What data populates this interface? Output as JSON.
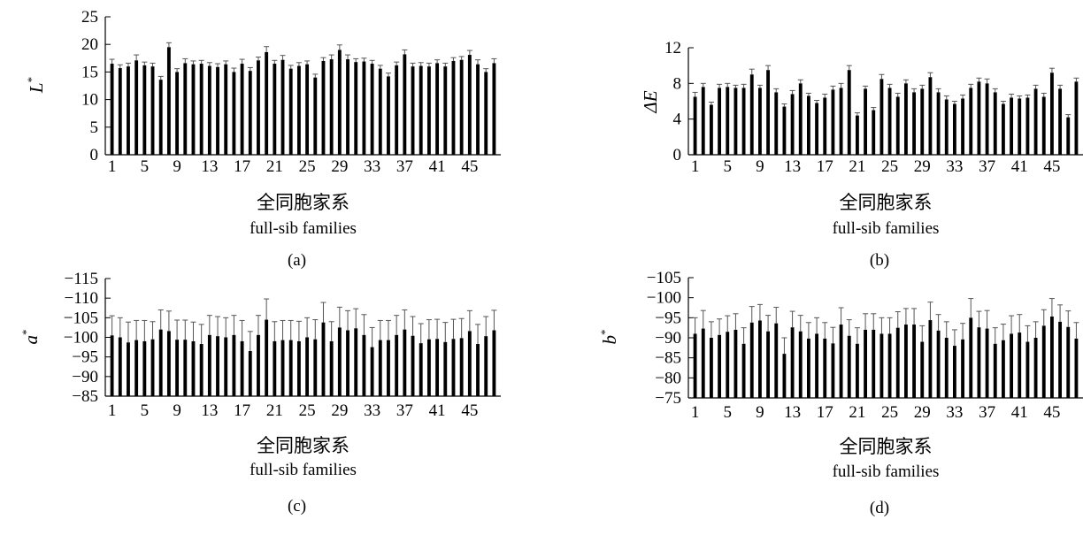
{
  "chart_data": [
    {
      "type": "bar",
      "panel_label": "(a)",
      "ylabel": "L",
      "ylabel_sup": "*",
      "xlabel_cn": "全同胞家系",
      "xlabel_en": "full-sib families",
      "ylim": [
        0,
        25
      ],
      "yticks": [
        "0",
        "5",
        "10",
        "15",
        "20",
        "25"
      ],
      "xticks": [
        "1",
        "5",
        "9",
        "13",
        "17",
        "21",
        "25",
        "29",
        "33",
        "37",
        "41",
        "45"
      ],
      "categories": [
        1,
        2,
        3,
        4,
        5,
        6,
        7,
        8,
        9,
        10,
        11,
        12,
        13,
        14,
        15,
        16,
        17,
        18,
        19,
        20,
        21,
        22,
        23,
        24,
        25,
        26,
        27,
        28,
        29,
        30,
        31,
        32,
        33,
        34,
        35,
        36,
        37,
        38,
        39,
        40,
        41,
        42,
        43,
        44,
        45,
        46,
        47,
        48
      ],
      "values": [
        16.5,
        15.7,
        16.0,
        17.1,
        16.2,
        16.0,
        13.6,
        19.5,
        15.0,
        16.6,
        16.4,
        16.5,
        16.1,
        15.9,
        16.4,
        15.0,
        16.5,
        15.2,
        17.1,
        18.6,
        16.5,
        17.2,
        15.6,
        16.1,
        16.4,
        14.0,
        17.0,
        17.3,
        19.0,
        17.3,
        16.8,
        16.9,
        16.5,
        15.6,
        14.2,
        16.2,
        18.2,
        16.0,
        16.1,
        16.0,
        16.6,
        16.0,
        17.0,
        17.2,
        18.1,
        16.4,
        15.0,
        16.6
      ],
      "errors": [
        0.8,
        0.6,
        0.6,
        1.0,
        0.6,
        0.6,
        0.6,
        0.8,
        0.6,
        0.8,
        0.6,
        0.6,
        0.6,
        0.6,
        0.6,
        0.7,
        0.8,
        0.6,
        0.6,
        1.0,
        0.6,
        0.8,
        0.6,
        0.6,
        0.6,
        0.6,
        0.6,
        0.8,
        0.9,
        0.8,
        0.6,
        0.6,
        0.6,
        0.6,
        0.6,
        0.6,
        0.8,
        0.6,
        0.6,
        0.6,
        0.6,
        0.6,
        0.6,
        0.6,
        0.8,
        0.8,
        0.6,
        0.8
      ]
    },
    {
      "type": "bar",
      "panel_label": "(b)",
      "ylabel": "ΔE",
      "ylabel_sup": "",
      "xlabel_cn": "全同胞家系",
      "xlabel_en": "full-sib families",
      "ylim": [
        0,
        12
      ],
      "yticks": [
        "0",
        "4",
        "8",
        "12"
      ],
      "xticks": [
        "1",
        "5",
        "9",
        "13",
        "17",
        "21",
        "25",
        "29",
        "33",
        "37",
        "41",
        "45"
      ],
      "categories": [
        1,
        2,
        3,
        4,
        5,
        6,
        7,
        8,
        9,
        10,
        11,
        12,
        13,
        14,
        15,
        16,
        17,
        18,
        19,
        20,
        21,
        22,
        23,
        24,
        25,
        26,
        27,
        28,
        29,
        30,
        31,
        32,
        33,
        34,
        35,
        36,
        37,
        38,
        39,
        40,
        41,
        42,
        43,
        44,
        45,
        46,
        47,
        48
      ],
      "values": [
        6.5,
        7.6,
        5.6,
        7.5,
        7.6,
        7.5,
        7.5,
        9.0,
        7.5,
        9.5,
        7.0,
        5.4,
        6.8,
        8.0,
        6.6,
        5.8,
        6.4,
        7.3,
        7.5,
        9.5,
        4.4,
        7.4,
        5.0,
        8.5,
        7.5,
        6.5,
        8.0,
        7.0,
        7.4,
        8.7,
        7.0,
        6.2,
        5.7,
        6.3,
        7.5,
        8.2,
        8.0,
        7.0,
        5.7,
        6.4,
        6.3,
        6.4,
        7.4,
        6.5,
        9.2,
        7.4,
        4.2,
        8.2
      ],
      "errors": [
        0.5,
        0.4,
        0.3,
        0.4,
        0.4,
        0.3,
        0.4,
        0.6,
        0.3,
        0.5,
        0.4,
        0.3,
        0.4,
        0.4,
        0.3,
        0.3,
        0.4,
        0.4,
        0.5,
        0.5,
        0.3,
        0.3,
        0.3,
        0.5,
        0.4,
        0.4,
        0.4,
        0.4,
        0.4,
        0.5,
        0.4,
        0.4,
        0.3,
        0.4,
        0.4,
        0.4,
        0.5,
        0.4,
        0.3,
        0.4,
        0.3,
        0.3,
        0.4,
        0.4,
        0.5,
        0.4,
        0.3,
        0.4
      ]
    },
    {
      "type": "bar",
      "panel_label": "(c)",
      "ylabel": "a",
      "ylabel_sup": "*",
      "xlabel_cn": "全同胞家系",
      "xlabel_en": "full-sib families",
      "ylim": [
        -85,
        -115
      ],
      "yticks": [
        "−85",
        "−90",
        "−95",
        "−100",
        "−105",
        "−110",
        "−115"
      ],
      "xticks": [
        "1",
        "5",
        "9",
        "13",
        "17",
        "21",
        "25",
        "29",
        "33",
        "37",
        "41",
        "45"
      ],
      "categories": [
        1,
        2,
        3,
        4,
        5,
        6,
        7,
        8,
        9,
        10,
        11,
        12,
        13,
        14,
        15,
        16,
        17,
        18,
        19,
        20,
        21,
        22,
        23,
        24,
        25,
        26,
        27,
        28,
        29,
        30,
        31,
        32,
        33,
        34,
        35,
        36,
        37,
        38,
        39,
        40,
        41,
        42,
        43,
        44,
        45,
        46,
        47,
        48
      ],
      "values": [
        -100.5,
        -100.0,
        -98.7,
        -99.3,
        -99.0,
        -99.5,
        -102.0,
        -101.6,
        -99.4,
        -99.4,
        -99.0,
        -98.3,
        -100.6,
        -100.3,
        -100.0,
        -100.6,
        -99.0,
        -96.5,
        -100.6,
        -104.5,
        -99.0,
        -99.3,
        -99.3,
        -99.0,
        -100.0,
        -99.5,
        -103.8,
        -99.0,
        -102.5,
        -101.8,
        -102.3,
        -100.6,
        -97.5,
        -99.3,
        -99.3,
        -100.6,
        -102.0,
        -100.4,
        -98.5,
        -99.5,
        -99.6,
        -98.8,
        -99.6,
        -99.8,
        -101.6,
        -98.3,
        -100.3,
        -101.8
      ],
      "errors": [
        5.0,
        5.0,
        5.2,
        5.0,
        5.3,
        4.5,
        5.0,
        5.1,
        5.0,
        5.0,
        4.9,
        5.0,
        5.0,
        5.0,
        5.0,
        5.0,
        5.3,
        5.0,
        5.0,
        5.3,
        5.0,
        5.0,
        5.0,
        5.1,
        5.0,
        5.0,
        5.1,
        5.0,
        5.2,
        5.0,
        5.0,
        5.2,
        5.0,
        5.0,
        5.0,
        5.0,
        5.0,
        4.9,
        5.0,
        5.0,
        5.0,
        5.0,
        5.0,
        5.0,
        5.2,
        5.0,
        5.0,
        5.1
      ]
    },
    {
      "type": "bar",
      "panel_label": "(d)",
      "ylabel": "b",
      "ylabel_sup": "*",
      "xlabel_cn": "全同胞家系",
      "xlabel_en": "full-sib families",
      "ylim": [
        -75,
        -105
      ],
      "yticks": [
        "−75",
        "−80",
        "−85",
        "−90",
        "−95",
        "−100",
        "−105"
      ],
      "xticks": [
        "1",
        "5",
        "9",
        "13",
        "17",
        "21",
        "25",
        "29",
        "33",
        "37",
        "41",
        "45"
      ],
      "categories": [
        1,
        2,
        3,
        4,
        5,
        6,
        7,
        8,
        9,
        10,
        11,
        12,
        13,
        14,
        15,
        16,
        17,
        18,
        19,
        20,
        21,
        22,
        23,
        24,
        25,
        26,
        27,
        28,
        29,
        30,
        31,
        32,
        33,
        34,
        35,
        36,
        37,
        38,
        39,
        40,
        41,
        42,
        43,
        44,
        45,
        46,
        47,
        48
      ],
      "values": [
        -91.0,
        -92.3,
        -90.0,
        -90.7,
        -91.5,
        -92.0,
        -88.5,
        -93.8,
        -94.3,
        -91.6,
        -93.6,
        -86.0,
        -92.6,
        -91.6,
        -89.8,
        -91.0,
        -89.8,
        -88.6,
        -93.3,
        -90.5,
        -88.5,
        -92.0,
        -92.0,
        -91.0,
        -91.0,
        -92.5,
        -93.3,
        -93.3,
        -89.0,
        -94.4,
        -91.8,
        -90.0,
        -88.0,
        -89.6,
        -95.0,
        -92.6,
        -92.3,
        -88.5,
        -89.4,
        -91.0,
        -91.3,
        -89.0,
        -90.0,
        -93.0,
        -95.3,
        -94.0,
        -92.7,
        -89.8
      ],
      "errors": [
        4.0,
        4.5,
        4.0,
        4.0,
        4.0,
        4.0,
        4.0,
        4.0,
        4.0,
        4.0,
        4.0,
        4.0,
        4.0,
        4.0,
        4.0,
        4.0,
        4.0,
        4.0,
        4.2,
        4.0,
        4.0,
        4.0,
        4.0,
        4.0,
        4.0,
        4.0,
        4.0,
        4.0,
        4.0,
        4.5,
        4.0,
        4.0,
        4.0,
        4.0,
        4.8,
        4.0,
        4.5,
        4.0,
        4.0,
        4.5,
        4.5,
        4.0,
        4.0,
        4.0,
        4.5,
        4.2,
        4.0,
        4.0
      ]
    }
  ]
}
